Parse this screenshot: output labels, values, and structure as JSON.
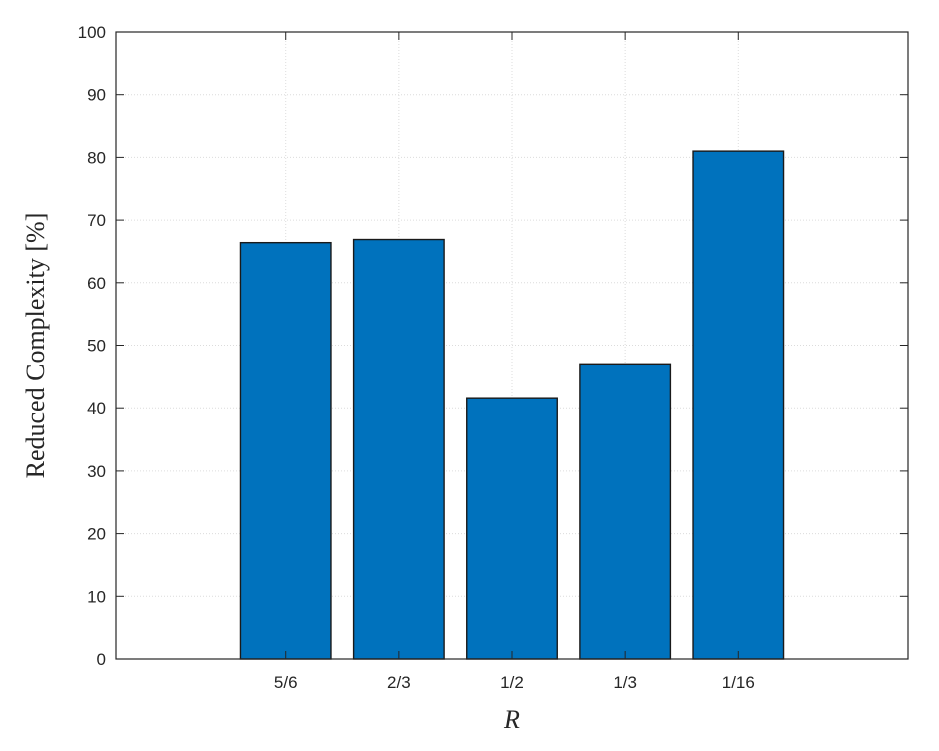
{
  "chart_data": {
    "type": "bar",
    "categories": [
      "5/6",
      "2/3",
      "1/2",
      "1/3",
      "1/16"
    ],
    "values": [
      66.4,
      66.9,
      41.6,
      47.0,
      81.0
    ],
    "xlabel": "R",
    "ylabel": "Reduced Complexity [%]",
    "ylim": [
      0,
      100
    ],
    "yticks": [
      0,
      10,
      20,
      30,
      40,
      50,
      60,
      70,
      80,
      90,
      100
    ],
    "x_axis_slots": 7,
    "grid": true,
    "bar_color": "#0072BD",
    "bar_edge_color": "#1a1a1a",
    "grid_color": "#dcdcdc",
    "axis_color": "#262626"
  }
}
